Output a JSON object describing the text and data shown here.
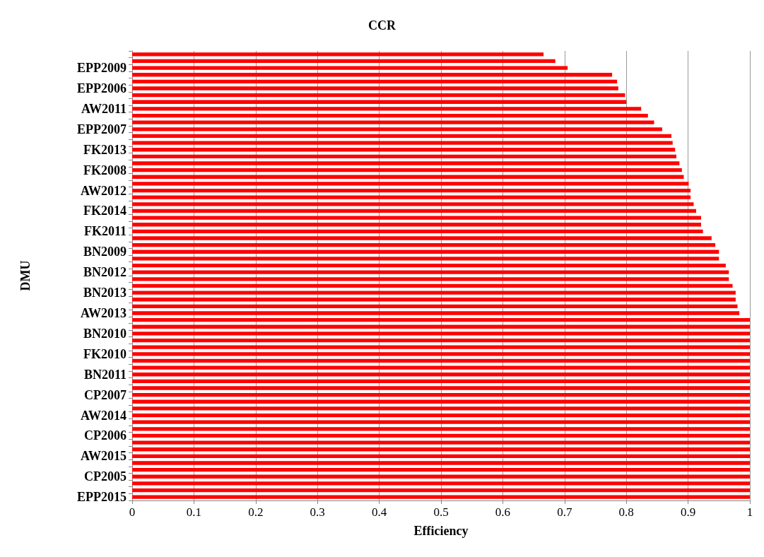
{
  "chart_data": {
    "type": "bar",
    "orientation": "horizontal",
    "title": "CCR",
    "xlabel": "Efficiency",
    "ylabel": "DMU",
    "categories": [
      null,
      null,
      "EPP2009",
      null,
      null,
      "EPP2006",
      null,
      null,
      "AW2011",
      null,
      null,
      "EPP2007",
      null,
      null,
      "FK2013",
      null,
      null,
      "FK2008",
      null,
      null,
      "AW2012",
      null,
      null,
      "FK2014",
      null,
      null,
      "FK2011",
      null,
      null,
      "BN2009",
      null,
      null,
      "BN2012",
      null,
      null,
      "BN2013",
      null,
      null,
      "AW2013",
      null,
      null,
      "BN2010",
      null,
      null,
      "FK2010",
      null,
      null,
      "BN2011",
      null,
      null,
      "CP2007",
      null,
      null,
      "AW2014",
      null,
      null,
      "CP2006",
      null,
      null,
      "AW2015",
      null,
      null,
      "CP2005",
      null,
      null,
      "EPP2015"
    ],
    "values": [
      0.666,
      0.685,
      0.705,
      0.777,
      0.785,
      0.787,
      0.798,
      0.8,
      0.824,
      0.835,
      0.845,
      0.858,
      0.873,
      0.875,
      0.879,
      0.881,
      0.886,
      0.89,
      0.893,
      0.901,
      0.904,
      0.904,
      0.909,
      0.913,
      0.921,
      0.921,
      0.924,
      0.938,
      0.944,
      0.95,
      0.95,
      0.961,
      0.966,
      0.966,
      0.972,
      0.977,
      0.977,
      0.98,
      0.983,
      1,
      1,
      1,
      1,
      1,
      1,
      1,
      1,
      1,
      1,
      1,
      1,
      1,
      1,
      1,
      1,
      1,
      1,
      1,
      1,
      1,
      1,
      1,
      1,
      1,
      1,
      1
    ],
    "color": "#ff0000",
    "xlim": [
      0,
      1
    ],
    "xticks": [
      0,
      0.1,
      0.2,
      0.3,
      0.4,
      0.5,
      0.6,
      0.7,
      0.8,
      0.9,
      1
    ],
    "grid": "x"
  }
}
